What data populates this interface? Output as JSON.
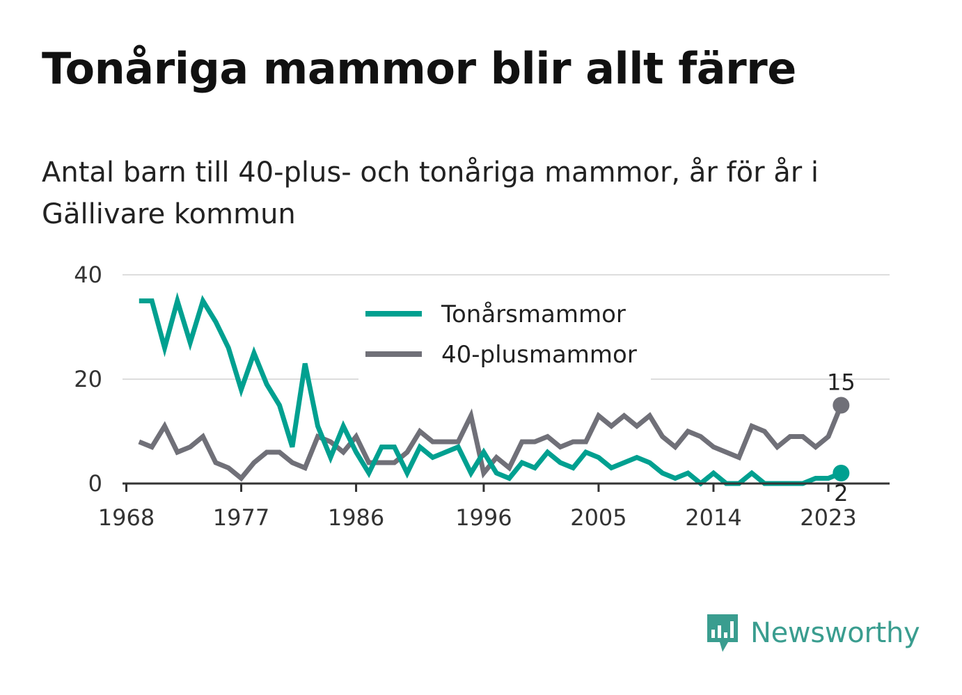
{
  "title": "Tonåriga mammor blir allt färre",
  "subtitle": "Antal barn till 40-plus- och tonåriga mammor, år för år i Gällivare kommun",
  "brand": {
    "name": "Newsworthy",
    "icon": "newsworthy-logo-icon"
  },
  "chart_data": {
    "type": "line",
    "x": [
      1969,
      1970,
      1971,
      1972,
      1973,
      1974,
      1975,
      1976,
      1977,
      1978,
      1979,
      1980,
      1981,
      1982,
      1983,
      1984,
      1985,
      1986,
      1987,
      1988,
      1989,
      1990,
      1991,
      1992,
      1993,
      1994,
      1995,
      1996,
      1997,
      1998,
      1999,
      2000,
      2001,
      2002,
      2003,
      2004,
      2005,
      2006,
      2007,
      2008,
      2009,
      2010,
      2011,
      2012,
      2013,
      2014,
      2015,
      2016,
      2017,
      2018,
      2019,
      2020,
      2021,
      2022,
      2023,
      2024
    ],
    "x_ticks": [
      "1968",
      "1977",
      "1986",
      "1996",
      "2005",
      "2014",
      "2023"
    ],
    "y_ticks": [
      "0",
      "20",
      "40"
    ],
    "ylim": [
      0,
      40
    ],
    "xlim": [
      1967.7,
      2027.8
    ],
    "series": [
      {
        "name": "Tonårsmammor",
        "color": "#00a090",
        "values": [
          35,
          35,
          26,
          35,
          27,
          35,
          31,
          26,
          18,
          25,
          19,
          15,
          7,
          23,
          11,
          5,
          11,
          6,
          2,
          7,
          7,
          2,
          7,
          5,
          6,
          7,
          2,
          6,
          2,
          1,
          4,
          3,
          6,
          4,
          3,
          6,
          5,
          3,
          4,
          5,
          4,
          2,
          1,
          2,
          0,
          2,
          0,
          0,
          2,
          0,
          0,
          0,
          0,
          1,
          1,
          2
        ],
        "end_label": "2"
      },
      {
        "name": "40-plusmammor",
        "color": "#707078",
        "values": [
          8,
          7,
          11,
          6,
          7,
          9,
          4,
          3,
          1,
          4,
          6,
          6,
          4,
          3,
          9,
          8,
          6,
          9,
          4,
          4,
          4,
          6,
          10,
          8,
          8,
          8,
          13,
          2,
          5,
          3,
          8,
          8,
          9,
          7,
          8,
          8,
          13,
          11,
          13,
          11,
          13,
          9,
          7,
          10,
          9,
          7,
          6,
          5,
          11,
          10,
          7,
          9,
          9,
          7,
          9,
          15
        ],
        "end_label": "15"
      }
    ],
    "legend_position": "top-center",
    "grid": true
  }
}
